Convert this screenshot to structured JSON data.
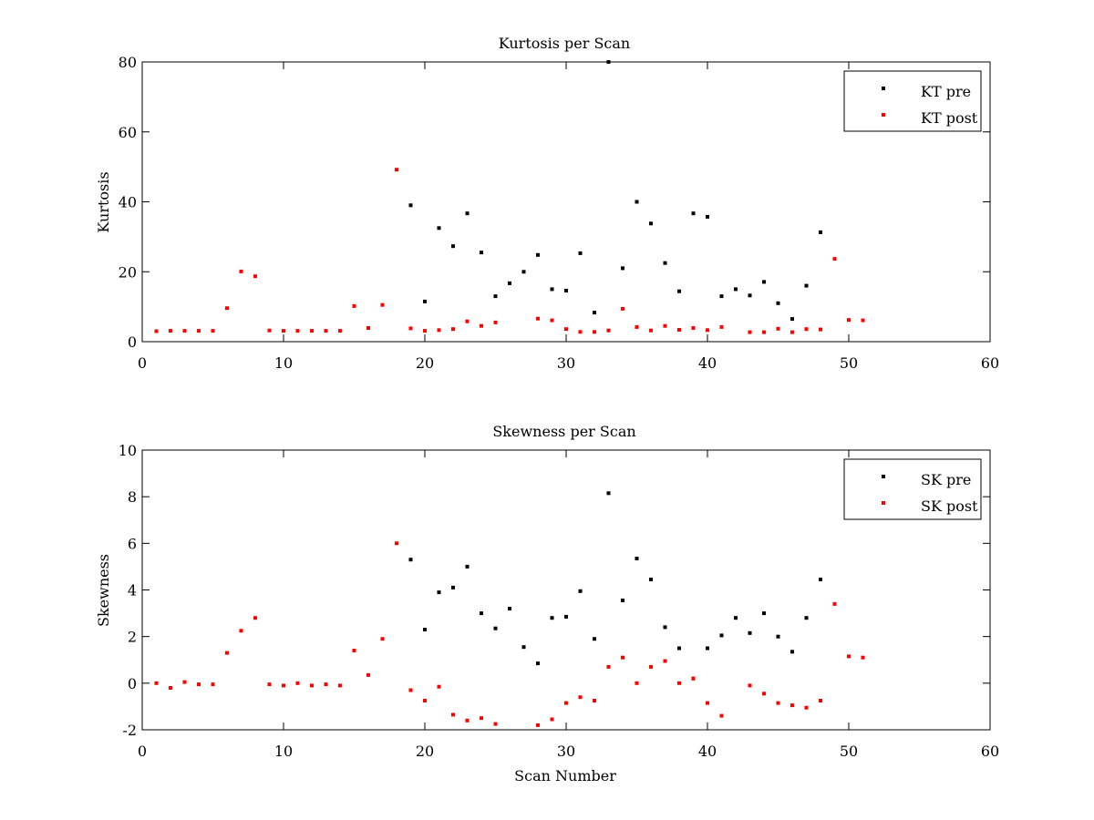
{
  "chart_data": [
    {
      "type": "scatter",
      "title": "Kurtosis per Scan",
      "xlabel": "",
      "ylabel": "Kurtosis",
      "xlim": [
        0,
        60
      ],
      "ylim": [
        0,
        80
      ],
      "xticks": [
        0,
        10,
        20,
        30,
        40,
        50,
        60
      ],
      "yticks": [
        0,
        20,
        40,
        60,
        80
      ],
      "legend_position": "top-right",
      "grid": false,
      "series": [
        {
          "name": "KT pre",
          "color": "#000000",
          "x": [
            19,
            20,
            21,
            22,
            23,
            24,
            25,
            26,
            27,
            28,
            29,
            30,
            31,
            32,
            33,
            34,
            35,
            36,
            37,
            38,
            39,
            40,
            41,
            42,
            43,
            44,
            45,
            46,
            47,
            48
          ],
          "y": [
            39.0,
            11.5,
            32.5,
            27.3,
            36.7,
            25.5,
            13.0,
            16.7,
            20.0,
            24.8,
            15.0,
            14.6,
            25.3,
            8.3,
            80.0,
            21.0,
            40.0,
            33.8,
            22.5,
            14.4,
            36.7,
            35.7,
            13.0,
            15.0,
            13.2,
            17.1,
            11.0,
            6.5,
            16.0,
            31.3
          ]
        },
        {
          "name": "KT post",
          "color": "#ff0000",
          "x": [
            1,
            2,
            3,
            4,
            5,
            6,
            7,
            8,
            9,
            10,
            11,
            12,
            13,
            14,
            15,
            16,
            17,
            18,
            19,
            20,
            21,
            22,
            23,
            24,
            25,
            28,
            29,
            30,
            31,
            32,
            33,
            34,
            35,
            36,
            37,
            38,
            39,
            40,
            41,
            43,
            44,
            45,
            46,
            47,
            48,
            49,
            50,
            51
          ],
          "y": [
            3.0,
            3.1,
            3.1,
            3.1,
            3.1,
            9.6,
            20.1,
            18.7,
            3.2,
            3.1,
            3.1,
            3.1,
            3.1,
            3.1,
            10.2,
            3.9,
            10.5,
            49.2,
            3.8,
            3.1,
            3.3,
            3.6,
            5.8,
            4.5,
            5.5,
            6.6,
            6.1,
            3.6,
            2.8,
            2.8,
            3.2,
            9.4,
            4.2,
            3.2,
            4.5,
            3.4,
            3.9,
            3.3,
            4.2,
            2.7,
            2.7,
            3.7,
            2.7,
            3.6,
            3.5,
            23.7,
            6.2,
            6.1
          ]
        }
      ]
    },
    {
      "type": "scatter",
      "title": "Skewness per Scan",
      "xlabel": "Scan Number",
      "ylabel": "Skewness",
      "xlim": [
        0,
        60
      ],
      "ylim": [
        -2,
        10
      ],
      "xticks": [
        0,
        10,
        20,
        30,
        40,
        50,
        60
      ],
      "yticks": [
        -2,
        0,
        2,
        4,
        6,
        8,
        10
      ],
      "legend_position": "top-right",
      "grid": false,
      "series": [
        {
          "name": "SK pre",
          "color": "#000000",
          "x": [
            19,
            20,
            21,
            22,
            23,
            24,
            25,
            26,
            27,
            28,
            29,
            30,
            31,
            32,
            33,
            34,
            35,
            36,
            37,
            38,
            39,
            40,
            41,
            42,
            43,
            44,
            45,
            46,
            47,
            48
          ],
          "y": [
            5.3,
            2.3,
            3.9,
            4.1,
            5.0,
            3.0,
            2.35,
            3.2,
            1.55,
            0.85,
            2.8,
            2.85,
            3.95,
            1.9,
            8.15,
            3.55,
            5.35,
            4.45,
            2.4,
            1.5,
            0.2,
            1.5,
            2.05,
            2.8,
            2.15,
            3.0,
            2.0,
            1.35,
            2.8,
            4.45
          ]
        },
        {
          "name": "SK post",
          "color": "#ff0000",
          "x": [
            1,
            2,
            3,
            4,
            5,
            6,
            7,
            8,
            9,
            10,
            11,
            12,
            13,
            14,
            15,
            16,
            17,
            18,
            19,
            20,
            21,
            22,
            23,
            24,
            25,
            28,
            29,
            30,
            31,
            32,
            33,
            34,
            35,
            36,
            37,
            38,
            39,
            40,
            41,
            43,
            44,
            45,
            46,
            47,
            48,
            49,
            50,
            51
          ],
          "y": [
            0.0,
            -0.2,
            0.05,
            -0.05,
            -0.05,
            1.3,
            2.25,
            2.8,
            -0.05,
            -0.1,
            0.0,
            -0.1,
            -0.05,
            -0.1,
            1.4,
            0.35,
            1.9,
            6.0,
            -0.3,
            -0.75,
            -0.15,
            -1.35,
            -1.6,
            -1.5,
            -1.75,
            -1.8,
            -1.55,
            -0.85,
            -0.6,
            -0.75,
            0.7,
            1.1,
            0.0,
            0.7,
            0.95,
            0.0,
            0.2,
            -0.85,
            -1.4,
            -0.1,
            -0.45,
            -0.85,
            -0.95,
            -1.05,
            -0.75,
            3.4,
            1.15,
            1.1
          ]
        }
      ]
    }
  ]
}
